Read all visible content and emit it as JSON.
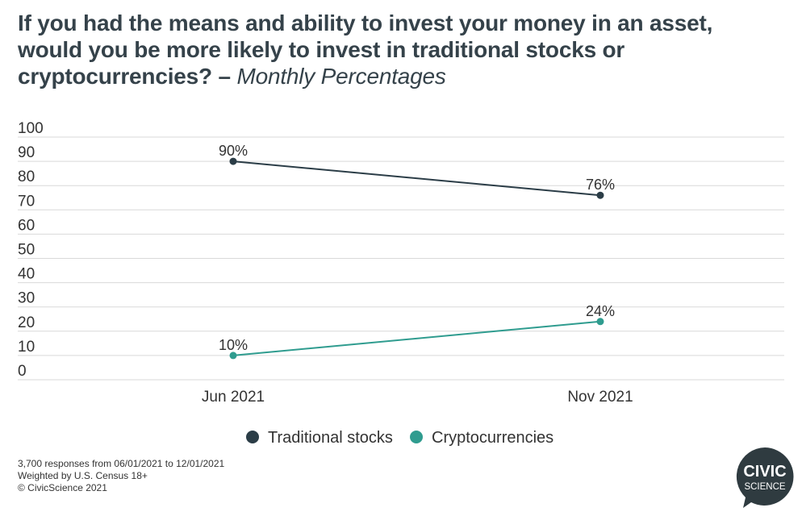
{
  "title": {
    "main": "If you had the means and ability to invest your money in an asset, would you be more likely to invest in traditional stocks or cryptocurrencies? – ",
    "subtitle": "Monthly Percentages"
  },
  "chart_data": {
    "type": "line",
    "categories": [
      "Jun 2021",
      "Nov 2021"
    ],
    "series": [
      {
        "name": "Traditional stocks",
        "values": [
          90,
          76
        ],
        "labels": [
          "90%",
          "76%"
        ],
        "color": "#2b3d47"
      },
      {
        "name": "Cryptocurrencies",
        "values": [
          10,
          24
        ],
        "labels": [
          "10%",
          "24%"
        ],
        "color": "#2f9c8f"
      }
    ],
    "ylim": [
      0,
      100
    ],
    "yticks": [
      0,
      10,
      20,
      30,
      40,
      50,
      60,
      70,
      80,
      90,
      100
    ],
    "grid": true,
    "legend_position": "bottom"
  },
  "footer": {
    "line1": "3,700 responses from 06/01/2021 to 12/01/2021",
    "line2": "Weighted by U.S. Census 18+",
    "line3": "© CivicScience 2021"
  },
  "logo": {
    "line1": "CIVIC",
    "line2": "SCIENCE",
    "color": "#2f3b40"
  }
}
